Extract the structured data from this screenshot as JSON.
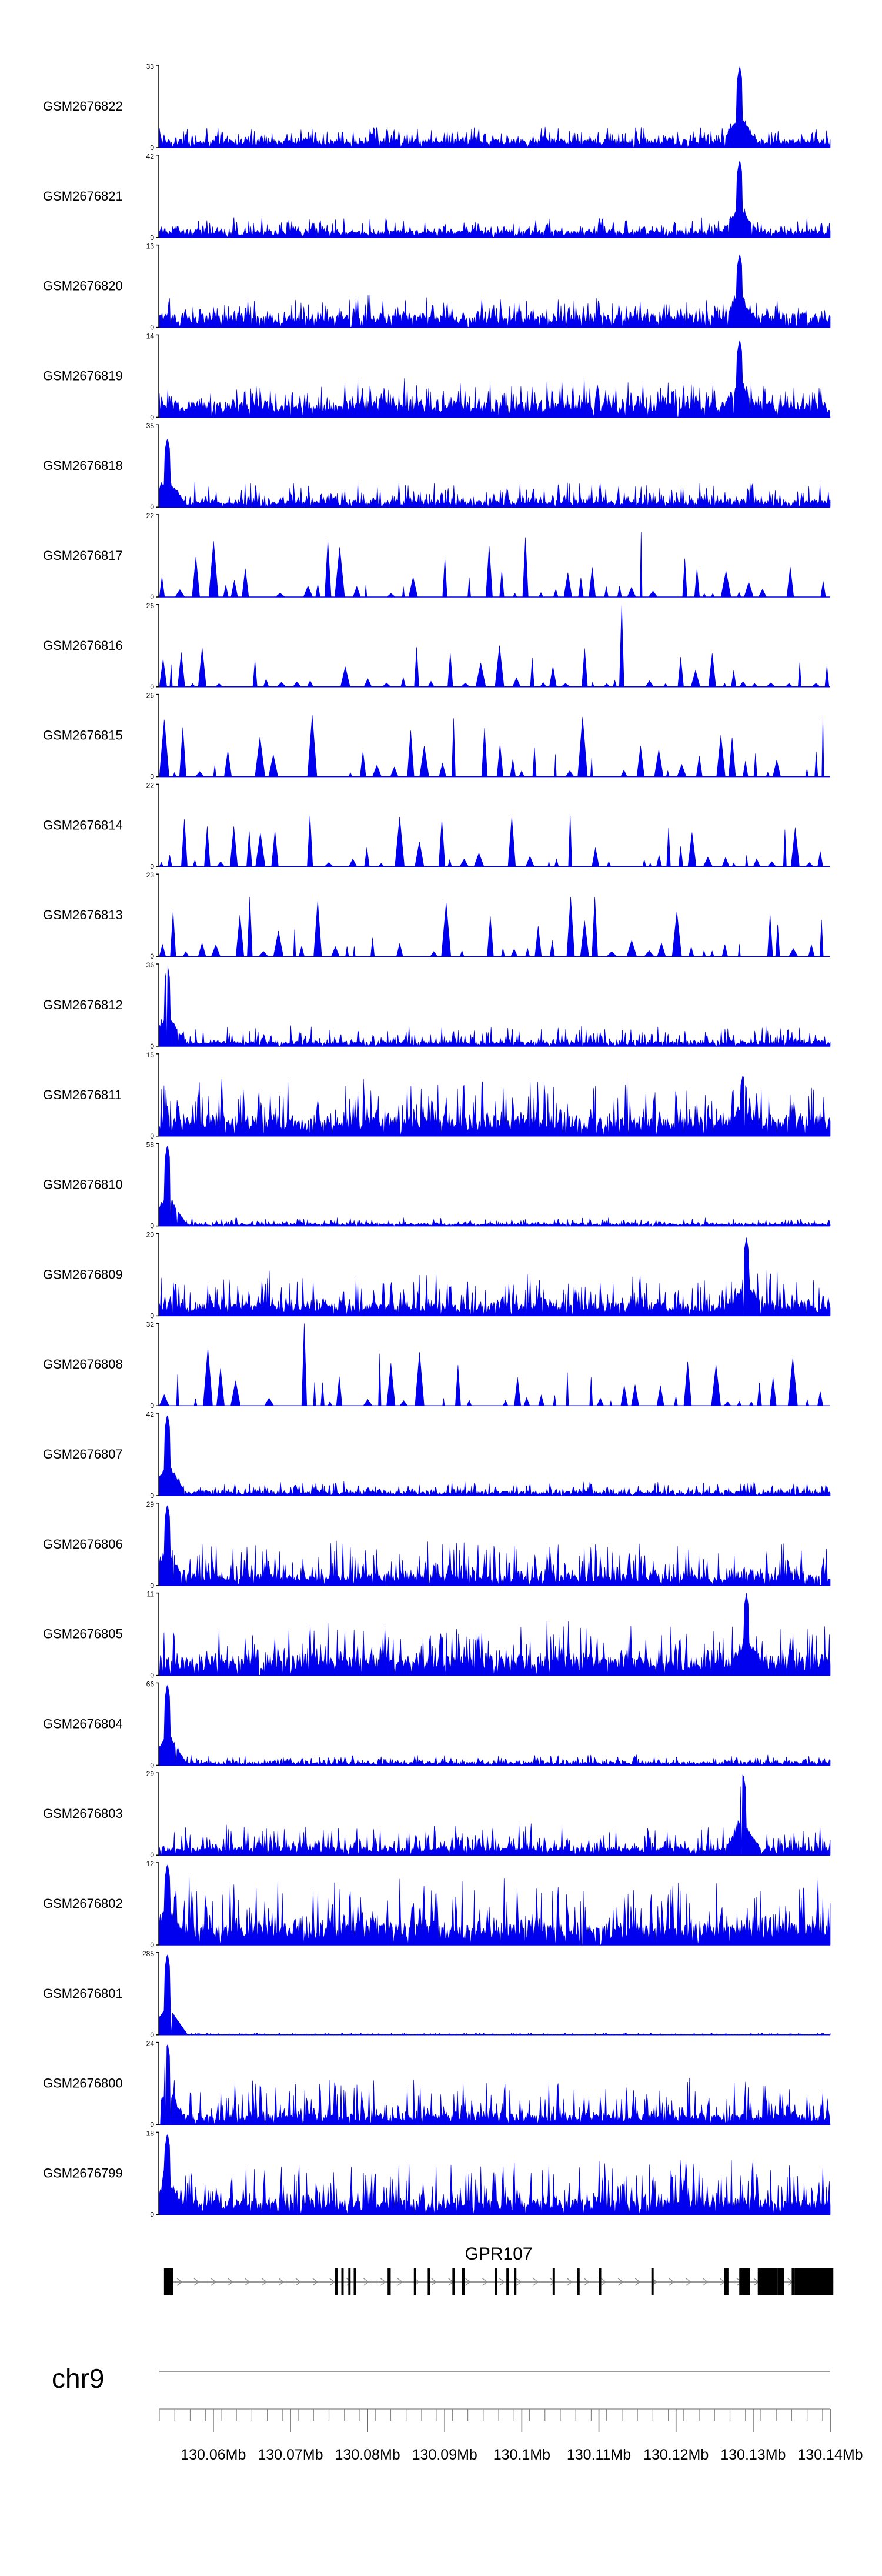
{
  "chart_data": {
    "type": "area",
    "description_free": true,
    "color": "#0000ee",
    "tracks": [
      {
        "name": "GSM2676822",
        "ymax": "33",
        "ymin": "0",
        "peak": {
          "pos": 0.865,
          "h": 1.0
        },
        "base": 0.08,
        "spike": 0.18,
        "smooth": 0.0
      },
      {
        "name": "GSM2676821",
        "ymax": "42",
        "ymin": "0",
        "peak": {
          "pos": 0.865,
          "h": 0.95
        },
        "base": 0.07,
        "spike": 0.16,
        "smooth": 0.0
      },
      {
        "name": "GSM2676820",
        "ymax": "13",
        "ymin": "0",
        "peak": {
          "pos": 0.865,
          "h": 0.9
        },
        "base": 0.12,
        "spike": 0.25,
        "smooth": 0.0
      },
      {
        "name": "GSM2676819",
        "ymax": "14",
        "ymin": "0",
        "peak": {
          "pos": 0.865,
          "h": 0.95
        },
        "base": 0.15,
        "spike": 0.3,
        "smooth": 0.0
      },
      {
        "name": "GSM2676818",
        "ymax": "35",
        "ymin": "0",
        "peak": {
          "pos": 0.012,
          "h": 0.85
        },
        "base": 0.06,
        "spike": 0.25,
        "smooth": 0.0
      },
      {
        "name": "GSM2676817",
        "ymax": "22",
        "ymin": "0",
        "peak": {
          "pos": 0.14,
          "h": 1.0
        },
        "base": 0.04,
        "spike": 0.75,
        "smooth": 1.0
      },
      {
        "name": "GSM2676816",
        "ymax": "26",
        "ymin": "0",
        "peak": {
          "pos": 0.69,
          "h": 1.0
        },
        "base": 0.04,
        "spike": 0.55,
        "smooth": 1.0
      },
      {
        "name": "GSM2676815",
        "ymax": "26",
        "ymin": "0",
        "peak": {
          "pos": 0.78,
          "h": 1.0
        },
        "base": 0.05,
        "spike": 0.7,
        "smooth": 1.0
      },
      {
        "name": "GSM2676814",
        "ymax": "22",
        "ymin": "0",
        "peak": {
          "pos": 0.27,
          "h": 1.0
        },
        "base": 0.04,
        "spike": 0.6,
        "smooth": 1.0
      },
      {
        "name": "GSM2676813",
        "ymax": "23",
        "ymin": "0",
        "peak": {
          "pos": 0.33,
          "h": 1.0
        },
        "base": 0.06,
        "spike": 0.75,
        "smooth": 1.0
      },
      {
        "name": "GSM2676812",
        "ymax": "36",
        "ymin": "0",
        "peak": {
          "pos": 0.012,
          "h": 1.0
        },
        "base": 0.05,
        "spike": 0.2,
        "smooth": 0.0
      },
      {
        "name": "GSM2676811",
        "ymax": "15",
        "ymin": "0",
        "peak": {
          "pos": 0.87,
          "h": 0.75
        },
        "base": 0.18,
        "spike": 0.5,
        "smooth": 0.0
      },
      {
        "name": "GSM2676810",
        "ymax": "58",
        "ymin": "0",
        "peak": {
          "pos": 0.012,
          "h": 1.0
        },
        "base": 0.02,
        "spike": 0.08,
        "smooth": 0.0
      },
      {
        "name": "GSM2676809",
        "ymax": "20",
        "ymin": "0",
        "peak": {
          "pos": 0.875,
          "h": 0.95
        },
        "base": 0.12,
        "spike": 0.4,
        "smooth": 0.0
      },
      {
        "name": "GSM2676808",
        "ymax": "32",
        "ymin": "0",
        "peak": {
          "pos": 0.22,
          "h": 1.0
        },
        "base": 0.05,
        "spike": 0.65,
        "smooth": 1.0
      },
      {
        "name": "GSM2676807",
        "ymax": "42",
        "ymin": "0",
        "peak": {
          "pos": 0.012,
          "h": 1.0
        },
        "base": 0.04,
        "spike": 0.15,
        "smooth": 0.0
      },
      {
        "name": "GSM2676806",
        "ymax": "29",
        "ymin": "0",
        "peak": {
          "pos": 0.012,
          "h": 1.0
        },
        "base": 0.1,
        "spike": 0.45,
        "smooth": 0.0
      },
      {
        "name": "GSM2676805",
        "ymax": "11",
        "ymin": "0",
        "peak": {
          "pos": 0.875,
          "h": 1.0
        },
        "base": 0.18,
        "spike": 0.45,
        "smooth": 0.0
      },
      {
        "name": "GSM2676804",
        "ymax": "66",
        "ymin": "0",
        "peak": {
          "pos": 0.012,
          "h": 1.0
        },
        "base": 0.03,
        "spike": 0.1,
        "smooth": 0.0
      },
      {
        "name": "GSM2676803",
        "ymax": "29",
        "ymin": "0",
        "peak": {
          "pos": 0.87,
          "h": 1.0
        },
        "base": 0.08,
        "spike": 0.3,
        "smooth": 0.0
      },
      {
        "name": "GSM2676802",
        "ymax": "12",
        "ymin": "0",
        "peak": {
          "pos": 0.012,
          "h": 1.0
        },
        "base": 0.2,
        "spike": 0.6,
        "smooth": 0.0
      },
      {
        "name": "GSM2676801",
        "ymax": "285",
        "ymin": "0",
        "peak": {
          "pos": 0.012,
          "h": 1.0
        },
        "base": 0.005,
        "spike": 0.02,
        "smooth": 0.0
      },
      {
        "name": "GSM2676800",
        "ymax": "24",
        "ymin": "0",
        "peak": {
          "pos": 0.012,
          "h": 1.0
        },
        "base": 0.1,
        "spike": 0.45,
        "smooth": 0.0
      },
      {
        "name": "GSM2676799",
        "ymax": "18",
        "ymin": "0",
        "peak": {
          "pos": 0.012,
          "h": 1.0
        },
        "base": 0.15,
        "spike": 0.55,
        "smooth": 0.0
      }
    ],
    "gene": {
      "name": "GPR107",
      "strand": "+",
      "start": 130.0536,
      "end": 130.1404,
      "exons": [
        [
          130.0536,
          130.0545
        ],
        [
          130.0545,
          130.0548
        ],
        [
          130.0758,
          130.0761
        ],
        [
          130.0766,
          130.0769
        ],
        [
          130.0775,
          130.0778
        ],
        [
          130.0782,
          130.0785
        ],
        [
          130.0826,
          130.083
        ],
        [
          130.086,
          130.0863
        ],
        [
          130.0878,
          130.0881
        ],
        [
          130.091,
          130.0913
        ],
        [
          130.0922,
          130.0926
        ],
        [
          130.0965,
          130.0968
        ],
        [
          130.098,
          130.0983
        ],
        [
          130.099,
          130.0993
        ],
        [
          130.104,
          130.1043
        ],
        [
          130.1072,
          130.1075
        ],
        [
          130.11,
          130.1103
        ],
        [
          130.1168,
          130.1171
        ],
        [
          130.1262,
          130.1268
        ],
        [
          130.1282,
          130.1296
        ],
        [
          130.1306,
          130.1332
        ],
        [
          130.1332,
          130.134
        ],
        [
          130.1335,
          130.1338
        ],
        [
          130.135,
          130.1354
        ],
        [
          130.1354,
          130.1404
        ]
      ]
    },
    "axis": {
      "chrom": "chr9",
      "xlim": [
        130.053,
        130.14
      ],
      "ticks": [
        130.06,
        130.07,
        130.08,
        130.09,
        130.1,
        130.11,
        130.12,
        130.13,
        130.14
      ],
      "tick_labels": [
        "130.06Mb",
        "130.07Mb",
        "130.08Mb",
        "130.09Mb",
        "130.1Mb",
        "130.11Mb",
        "130.12Mb",
        "130.13Mb",
        "130.14Mb"
      ],
      "minor_step": 0.002
    }
  }
}
